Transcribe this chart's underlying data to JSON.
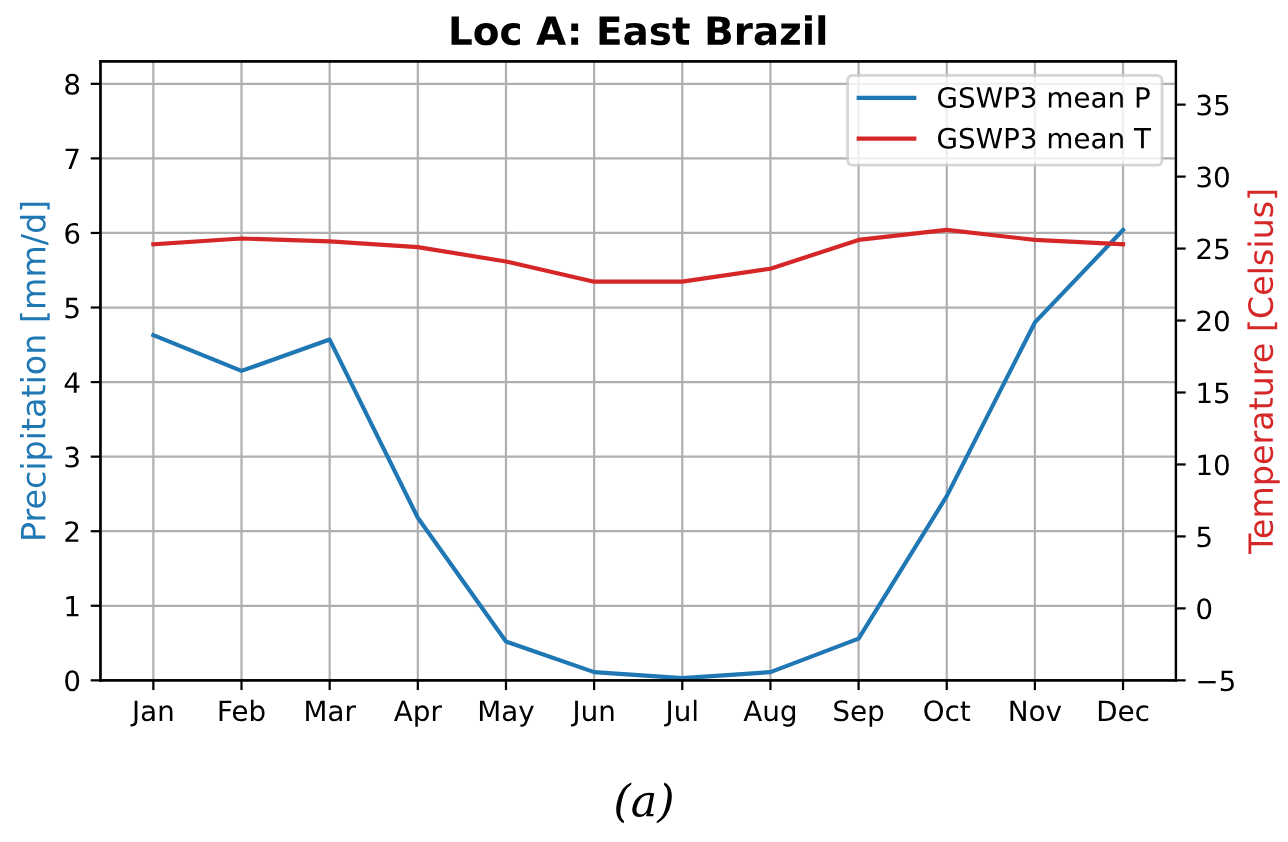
{
  "chart_data": {
    "type": "line",
    "title": "Loc A: East Brazil",
    "ylabel": "Precipitation [mm/d]",
    "y2label": "Temperature [Celsius]",
    "annotations": [
      "(a)"
    ],
    "categories": [
      "Jan",
      "Feb",
      "Mar",
      "Apr",
      "May",
      "Jun",
      "Jul",
      "Aug",
      "Sep",
      "Oct",
      "Nov",
      "Dec"
    ],
    "series": [
      {
        "name": "GSWP3 mean P",
        "color": "#1f77b4",
        "values": [
          4.63,
          4.15,
          4.57,
          2.18,
          0.52,
          0.11,
          0.03,
          0.11,
          0.56,
          2.47,
          4.8,
          6.04
        ]
      },
      {
        "name": "GSWP3 mean T",
        "color": "#d62728",
        "axis": "y2",
        "values": [
          25.3,
          25.7,
          25.5,
          25.1,
          24.1,
          22.7,
          22.7,
          23.6,
          25.6,
          26.3,
          25.6,
          25.3
        ]
      }
    ],
    "ylim": [
      0,
      8.3
    ],
    "yticks": [
      0,
      1,
      2,
      3,
      4,
      5,
      6,
      7,
      8
    ],
    "y2lim": [
      -5,
      38
    ],
    "y2ticks": [
      {
        "value": -5,
        "label": "−5"
      },
      0,
      5,
      10,
      15,
      20,
      25,
      30,
      35
    ],
    "grid": true,
    "legend": "top right"
  }
}
